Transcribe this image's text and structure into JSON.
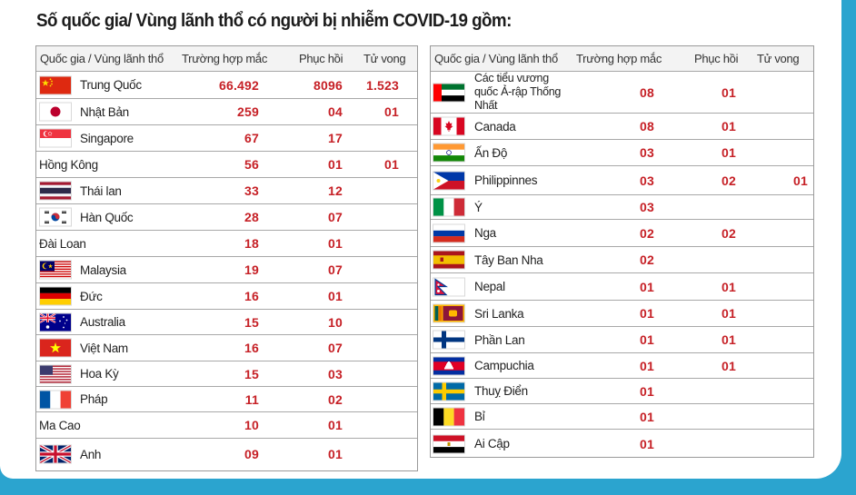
{
  "title": "Số quốc gia/ Vùng lãnh thổ có người bị nhiễm COVID-19 gồm:",
  "headers": {
    "country": "Quốc gia / Vùng lãnh thổ",
    "cases": "Trường hợp mắc",
    "recovered": "Phục hồi",
    "deaths": "Tử vong"
  },
  "left_rows": [
    {
      "name": "Trung Quốc",
      "flag": "china-flag-icon",
      "cases": "66.492",
      "recovered": "8096",
      "deaths": "1.523"
    },
    {
      "name": "Nhật Bản",
      "flag": "japan-flag-icon",
      "cases": "259",
      "recovered": "04",
      "deaths": "01"
    },
    {
      "name": "Singapore",
      "flag": "singapore-flag-icon",
      "cases": "67",
      "recovered": "17",
      "deaths": ""
    },
    {
      "name": "Hồng Kông",
      "flag": "",
      "cases": "56",
      "recovered": "01",
      "deaths": "01"
    },
    {
      "name": "Thái lan",
      "flag": "thailand-flag-icon",
      "cases": "33",
      "recovered": "12",
      "deaths": ""
    },
    {
      "name": "Hàn Quốc",
      "flag": "south-korea-flag-icon",
      "cases": "28",
      "recovered": "07",
      "deaths": ""
    },
    {
      "name": "Đài Loan",
      "flag": "",
      "cases": "18",
      "recovered": "01",
      "deaths": ""
    },
    {
      "name": "Malaysia",
      "flag": "malaysia-flag-icon",
      "cases": "19",
      "recovered": "07",
      "deaths": ""
    },
    {
      "name": "Đức",
      "flag": "germany-flag-icon",
      "cases": "16",
      "recovered": "01",
      "deaths": ""
    },
    {
      "name": "Australia",
      "flag": "australia-flag-icon",
      "cases": "15",
      "recovered": "10",
      "deaths": ""
    },
    {
      "name": "Việt Nam",
      "flag": "vietnam-flag-icon",
      "cases": "16",
      "recovered": "07",
      "deaths": ""
    },
    {
      "name": "Hoa Kỳ",
      "flag": "usa-flag-icon",
      "cases": "15",
      "recovered": "03",
      "deaths": ""
    },
    {
      "name": "Pháp",
      "flag": "france-flag-icon",
      "cases": "11",
      "recovered": "02",
      "deaths": ""
    },
    {
      "name": "Ma Cao",
      "flag": "",
      "cases": "10",
      "recovered": "01",
      "deaths": ""
    },
    {
      "name": "Anh",
      "flag": "uk-flag-icon",
      "cases": "09",
      "recovered": "01",
      "deaths": ""
    }
  ],
  "right_rows": [
    {
      "name": "Các tiểu vương quốc Ả-rập Thống Nhất",
      "flag": "uae-flag-icon",
      "cases": "08",
      "recovered": "01",
      "deaths": ""
    },
    {
      "name": "Canada",
      "flag": "canada-flag-icon",
      "cases": "08",
      "recovered": "01",
      "deaths": ""
    },
    {
      "name": "Ấn Độ",
      "flag": "india-flag-icon",
      "cases": "03",
      "recovered": "01",
      "deaths": ""
    },
    {
      "name": "Philippinnes",
      "flag": "philippines-flag-icon",
      "cases": "03",
      "recovered": "02",
      "deaths": "01"
    },
    {
      "name": "Ý",
      "flag": "italy-flag-icon",
      "cases": "03",
      "recovered": "",
      "deaths": ""
    },
    {
      "name": "Nga",
      "flag": "russia-flag-icon",
      "cases": "02",
      "recovered": "02",
      "deaths": ""
    },
    {
      "name": "Tây Ban Nha",
      "flag": "spain-flag-icon",
      "cases": "02",
      "recovered": "",
      "deaths": ""
    },
    {
      "name": "Nepal",
      "flag": "nepal-flag-icon",
      "cases": "01",
      "recovered": "01",
      "deaths": ""
    },
    {
      "name": "Sri Lanka",
      "flag": "sri-lanka-flag-icon",
      "cases": "01",
      "recovered": "01",
      "deaths": ""
    },
    {
      "name": "Phần Lan",
      "flag": "finland-flag-icon",
      "cases": "01",
      "recovered": "01",
      "deaths": ""
    },
    {
      "name": "Campuchia",
      "flag": "cambodia-flag-icon",
      "cases": "01",
      "recovered": "01",
      "deaths": ""
    },
    {
      "name": "Thuỵ Điển",
      "flag": "sweden-flag-icon",
      "cases": "01",
      "recovered": "",
      "deaths": ""
    },
    {
      "name": "Bỉ",
      "flag": "belgium-flag-icon",
      "cases": "01",
      "recovered": "",
      "deaths": ""
    },
    {
      "name": "Ai Cập",
      "flag": "egypt-flag-icon",
      "cases": "01",
      "recovered": "",
      "deaths": ""
    }
  ],
  "colors": {
    "value_red": "#c62026",
    "background_blue": "#2ba4cf"
  }
}
